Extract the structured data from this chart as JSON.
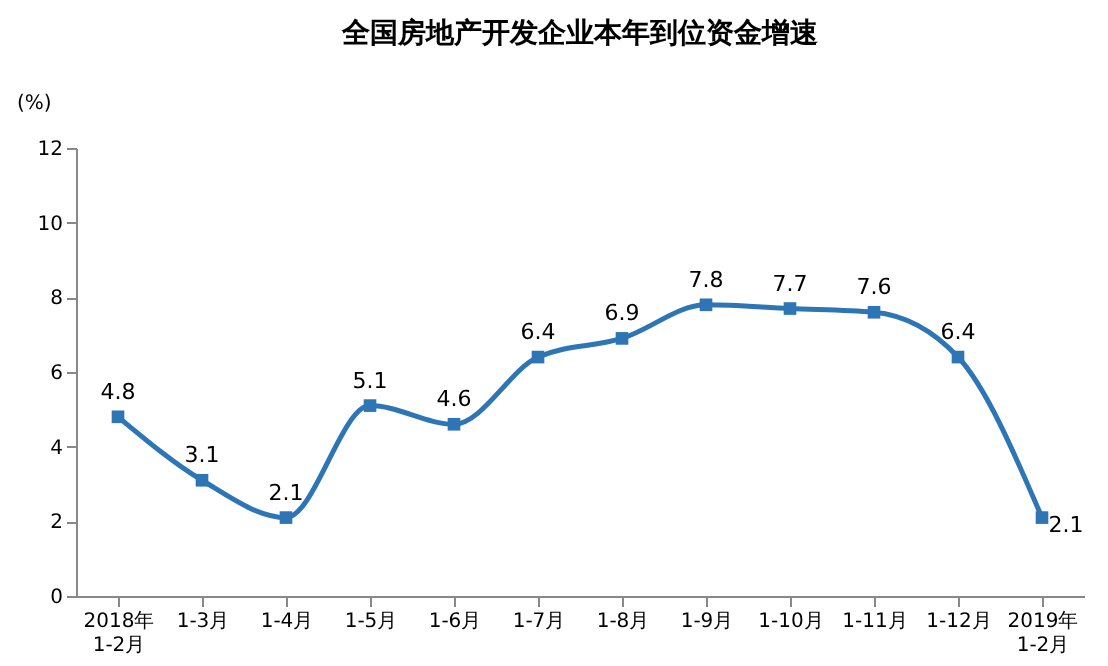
{
  "chart_data": {
    "type": "line",
    "title": "全国房地产开发企业本年到位资金增速",
    "ylabel": "(%)",
    "categories": [
      "2018年\n1-2月",
      "1-3月",
      "1-4月",
      "1-5月",
      "1-6月",
      "1-7月",
      "1-8月",
      "1-9月",
      "1-10月",
      "1-11月",
      "1-12月",
      "2019年\n1-2月"
    ],
    "series": [
      {
        "color": "#2e75b6",
        "values": [
          4.8,
          3.1,
          2.1,
          5.1,
          4.6,
          6.4,
          6.9,
          7.8,
          7.7,
          7.6,
          6.4,
          2.1
        ]
      }
    ],
    "ylim": [
      0,
      12
    ],
    "yticks": [
      0,
      2,
      4,
      6,
      8,
      10,
      12
    ],
    "grid": false,
    "marker": "square",
    "line_style": "solid",
    "data_labels": true
  }
}
